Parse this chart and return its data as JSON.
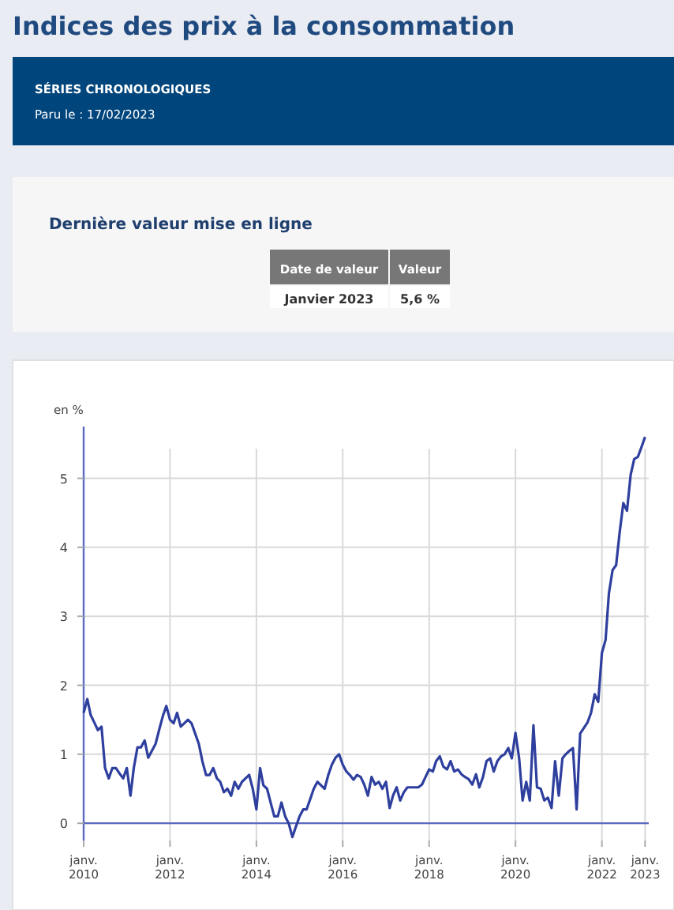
{
  "chart_data": {
    "type": "line",
    "title": "Indices des prix à la consommation",
    "subtitle": "SÉRIES CHRONOLOGIQUES",
    "annotations": [
      "Paru le : 17/02/2023",
      "Dernière valeur mise en ligne",
      "Date de valeur",
      "Valeur",
      "Janvier 2023",
      "5,6 %"
    ],
    "ylabel": "en %",
    "x": [
      "2010-01",
      "2010-02",
      "2010-03",
      "2010-04",
      "2010-05",
      "2010-06",
      "2010-07",
      "2010-08",
      "2010-09",
      "2010-10",
      "2010-11",
      "2010-12",
      "2011-01",
      "2011-02",
      "2011-03",
      "2011-04",
      "2011-05",
      "2011-06",
      "2011-07",
      "2011-08",
      "2011-09",
      "2011-10",
      "2011-11",
      "2011-12",
      "2012-01",
      "2012-02",
      "2012-03",
      "2012-04",
      "2012-05",
      "2012-06",
      "2012-07",
      "2012-08",
      "2012-09",
      "2012-10",
      "2012-11",
      "2012-12",
      "2013-01",
      "2013-02",
      "2013-03",
      "2013-04",
      "2013-05",
      "2013-06",
      "2013-07",
      "2013-08",
      "2013-09",
      "2013-10",
      "2013-11",
      "2013-12",
      "2014-01",
      "2014-02",
      "2014-03",
      "2014-04",
      "2014-05",
      "2014-06",
      "2014-07",
      "2014-08",
      "2014-09",
      "2014-10",
      "2014-11",
      "2014-12",
      "2015-01",
      "2015-02",
      "2015-03",
      "2015-04",
      "2015-05",
      "2015-06",
      "2015-07",
      "2015-08",
      "2015-09",
      "2015-10",
      "2015-11",
      "2015-12",
      "2016-01",
      "2016-02",
      "2016-03",
      "2016-04",
      "2016-05",
      "2016-06",
      "2016-07",
      "2016-08",
      "2016-09",
      "2016-10",
      "2016-11",
      "2016-12",
      "2017-01",
      "2017-02",
      "2017-03",
      "2017-04",
      "2017-05",
      "2017-06",
      "2017-07",
      "2017-08",
      "2017-09",
      "2017-10",
      "2017-11",
      "2017-12",
      "2018-01",
      "2018-02",
      "2018-03",
      "2018-04",
      "2018-05",
      "2018-06",
      "2018-07",
      "2018-08",
      "2018-09",
      "2018-10",
      "2018-11",
      "2018-12",
      "2019-01",
      "2019-02",
      "2019-03",
      "2019-04",
      "2019-05",
      "2019-06",
      "2019-07",
      "2019-08",
      "2019-09",
      "2019-10",
      "2019-11",
      "2019-12",
      "2020-01",
      "2020-02",
      "2020-03",
      "2020-04",
      "2020-05",
      "2020-06",
      "2020-07",
      "2020-08",
      "2020-09",
      "2020-10",
      "2020-11",
      "2020-12",
      "2021-01",
      "2021-02",
      "2021-03",
      "2021-04",
      "2021-05",
      "2021-06",
      "2021-07",
      "2021-08",
      "2021-09",
      "2021-10",
      "2021-11",
      "2021-12",
      "2022-01",
      "2022-02",
      "2022-03",
      "2022-04",
      "2022-05",
      "2022-06",
      "2022-07",
      "2022-08",
      "2022-09",
      "2022-10",
      "2022-11",
      "2022-12",
      "2023-01"
    ],
    "series": [
      {
        "color": "#2e3f9e",
        "values": [
          1.6,
          1.8,
          1.57,
          1.46,
          1.35,
          1.4,
          0.8,
          0.65,
          0.8,
          0.8,
          0.72,
          0.65,
          0.8,
          0.4,
          0.8,
          1.1,
          1.1,
          1.2,
          0.95,
          1.05,
          1.15,
          1.35,
          1.55,
          1.7,
          1.5,
          1.45,
          1.6,
          1.4,
          1.45,
          1.5,
          1.45,
          1.3,
          1.15,
          0.9,
          0.7,
          0.7,
          0.8,
          0.65,
          0.6,
          0.45,
          0.5,
          0.4,
          0.6,
          0.5,
          0.6,
          0.65,
          0.7,
          0.5,
          0.2,
          0.8,
          0.55,
          0.5,
          0.3,
          0.1,
          0.1,
          0.3,
          0.1,
          0.0,
          -0.2,
          -0.05,
          0.1,
          0.2,
          0.2,
          0.35,
          0.5,
          0.6,
          0.55,
          0.5,
          0.7,
          0.85,
          0.95,
          1.0,
          0.85,
          0.75,
          0.7,
          0.63,
          0.7,
          0.67,
          0.56,
          0.4,
          0.67,
          0.56,
          0.6,
          0.5,
          0.6,
          0.22,
          0.4,
          0.52,
          0.33,
          0.45,
          0.52,
          0.52,
          0.52,
          0.52,
          0.56,
          0.67,
          0.78,
          0.75,
          0.9,
          0.97,
          0.82,
          0.78,
          0.9,
          0.75,
          0.78,
          0.71,
          0.67,
          0.64,
          0.56,
          0.71,
          0.52,
          0.67,
          0.9,
          0.94,
          0.75,
          0.9,
          0.97,
          1.0,
          1.09,
          0.94,
          1.31,
          0.94,
          0.33,
          0.6,
          0.33,
          1.42,
          0.52,
          0.5,
          0.33,
          0.37,
          0.22,
          0.9,
          0.4,
          0.94,
          1.0,
          1.05,
          1.09,
          0.2,
          1.3,
          1.38,
          1.46,
          1.6,
          1.87,
          1.76,
          2.47,
          2.66,
          3.33,
          3.67,
          3.74,
          4.23,
          4.64,
          4.53,
          5.05,
          5.28,
          5.31,
          5.45,
          5.6
        ]
      }
    ],
    "xlim": [
      "2010-01",
      "2023-02"
    ],
    "xticks": [
      {
        "value": "2010-01",
        "label": "janv.\n2010"
      },
      {
        "value": "2012-01",
        "label": "janv.\n2012"
      },
      {
        "value": "2014-01",
        "label": "janv.\n2014"
      },
      {
        "value": "2016-01",
        "label": "janv.\n2016"
      },
      {
        "value": "2018-01",
        "label": "janv.\n2018"
      },
      {
        "value": "2020-01",
        "label": "janv.\n2020"
      },
      {
        "value": "2022-01",
        "label": "janv.\n2022"
      },
      {
        "value": "2023-01",
        "label": "janv.\n2023"
      }
    ],
    "ylim": [
      -0.25,
      5.75
    ],
    "yticks": [
      0,
      1,
      2,
      3,
      4,
      5
    ],
    "grid": true,
    "marker": "none",
    "line_style": "solid"
  }
}
